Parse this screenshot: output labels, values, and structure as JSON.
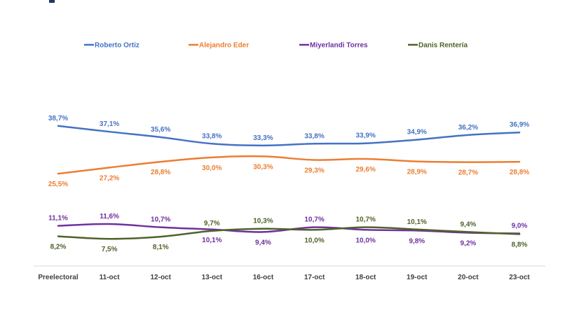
{
  "chart_data": {
    "type": "line",
    "title": "",
    "xlabel": "",
    "ylabel": "",
    "ylim": [
      0,
      45
    ],
    "grid": false,
    "legend_position": "top",
    "categories": [
      "Preelectoral",
      "11-oct",
      "12-oct",
      "13-oct",
      "16-oct",
      "17-oct",
      "18-oct",
      "19-oct",
      "20-oct",
      "23-oct"
    ],
    "series": [
      {
        "name": "Roberto Ortiz",
        "color": "#4472c4",
        "values": [
          38.7,
          37.1,
          35.6,
          33.8,
          33.3,
          33.8,
          33.9,
          34.9,
          36.2,
          36.9
        ],
        "labels": [
          "38,7%",
          "37,1%",
          "35,6%",
          "33,8%",
          "33,3%",
          "33,8%",
          "33,9%",
          "34,9%",
          "36,2%",
          "36,9%"
        ],
        "label_position": [
          "above",
          "above",
          "above",
          "above",
          "above",
          "above",
          "above",
          "above",
          "above",
          "above"
        ]
      },
      {
        "name": "Alejandro Eder",
        "color": "#ed7d31",
        "values": [
          25.5,
          27.2,
          28.8,
          30.0,
          30.3,
          29.3,
          29.6,
          28.9,
          28.7,
          28.8
        ],
        "labels": [
          "25,5%",
          "27,2%",
          "28,8%",
          "30,0%",
          "30,3%",
          "29,3%",
          "29,6%",
          "28,9%",
          "28,7%",
          "28,8%"
        ],
        "label_position": [
          "below",
          "below",
          "below",
          "below",
          "below",
          "below",
          "below",
          "below",
          "below",
          "below"
        ]
      },
      {
        "name": "Miyerlandi Torres",
        "color": "#7030a0",
        "values": [
          11.1,
          11.6,
          10.7,
          10.1,
          9.4,
          10.7,
          10.0,
          9.8,
          9.2,
          9.0
        ],
        "labels": [
          "11,1%",
          "11,6%",
          "10,7%",
          "10,1%",
          "9,4%",
          "10,7%",
          "10,0%",
          "9,8%",
          "9,2%",
          "9,0%"
        ],
        "label_position": [
          "above",
          "above",
          "above",
          "below",
          "below",
          "above",
          "below",
          "below",
          "below",
          "above"
        ]
      },
      {
        "name": "Danis Rentería",
        "color": "#4f6228",
        "values": [
          8.2,
          7.5,
          8.1,
          9.7,
          10.3,
          10.0,
          10.7,
          10.1,
          9.4,
          8.8
        ],
        "labels": [
          "8,2%",
          "7,5%",
          "8,1%",
          "9,7%",
          "10,3%",
          "10,0%",
          "10,7%",
          "10,1%",
          "9,4%",
          "8,8%"
        ],
        "label_position": [
          "below",
          "below",
          "below",
          "above",
          "above",
          "below",
          "above",
          "above",
          "above",
          "below"
        ]
      }
    ]
  }
}
